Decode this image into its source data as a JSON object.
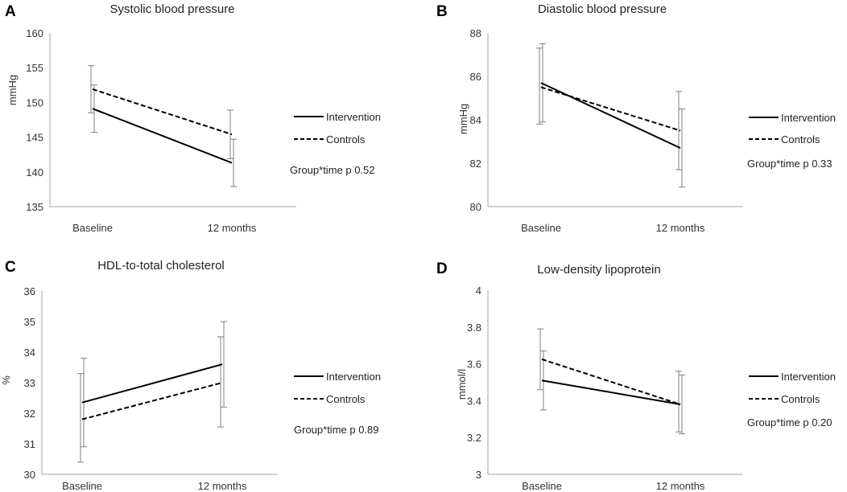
{
  "chart_data": [
    {
      "id": "A",
      "type": "line",
      "panel_label": "A",
      "title": "Systolic blood pressure",
      "ylabel": "mmHg",
      "xlabel": "",
      "categories": [
        "Baseline",
        "12 months"
      ],
      "ylim": [
        135,
        160
      ],
      "yticks": [
        "135",
        "140",
        "145",
        "150",
        "155",
        "160"
      ],
      "grid": false,
      "legend_position": "right",
      "series": [
        {
          "name": "Intervention",
          "style": "solid",
          "values": [
            149.1,
            141.3
          ],
          "err_low": [
            145.7,
            137.9
          ],
          "err_high": [
            152.5,
            144.7
          ]
        },
        {
          "name": "Controls",
          "style": "dashed",
          "values": [
            151.9,
            145.4
          ],
          "err_low": [
            148.5,
            141.9
          ],
          "err_high": [
            155.3,
            148.9
          ]
        }
      ],
      "annotation": "Group*time p 0.52"
    },
    {
      "id": "B",
      "type": "line",
      "panel_label": "B",
      "title": "Diastolic blood pressure",
      "ylabel": "mmHg",
      "xlabel": "",
      "categories": [
        "Baseline",
        "12 months"
      ],
      "ylim": [
        80,
        88
      ],
      "yticks": [
        "80",
        "82",
        "84",
        "86",
        "88"
      ],
      "grid": false,
      "legend_position": "right",
      "series": [
        {
          "name": "Intervention",
          "style": "solid",
          "values": [
            85.7,
            82.7
          ],
          "err_low": [
            83.9,
            80.9
          ],
          "err_high": [
            87.5,
            84.5
          ]
        },
        {
          "name": "Controls",
          "style": "dashed",
          "values": [
            85.5,
            83.5
          ],
          "err_low": [
            83.8,
            81.7
          ],
          "err_high": [
            87.3,
            85.3
          ]
        }
      ],
      "annotation": "Group*time p 0.33"
    },
    {
      "id": "C",
      "type": "line",
      "panel_label": "C",
      "title": "HDL-to-total cholesterol",
      "ylabel": "%",
      "xlabel": "",
      "categories": [
        "Baseline",
        "12 months"
      ],
      "ylim": [
        30,
        36
      ],
      "yticks": [
        "30",
        "31",
        "32",
        "33",
        "34",
        "35",
        "36"
      ],
      "grid": false,
      "legend_position": "right",
      "series": [
        {
          "name": "Intervention",
          "style": "solid",
          "values": [
            32.35,
            33.6
          ],
          "err_low": [
            30.9,
            32.2
          ],
          "err_high": [
            33.8,
            35.0
          ]
        },
        {
          "name": "Controls",
          "style": "dashed",
          "values": [
            31.8,
            33.0
          ],
          "err_low": [
            30.4,
            31.55
          ],
          "err_high": [
            33.3,
            34.5
          ]
        }
      ],
      "annotation": "Group*time p 0.89"
    },
    {
      "id": "D",
      "type": "line",
      "panel_label": "D",
      "title": "Low-density lipoprotein",
      "ylabel": "mmol/l",
      "xlabel": "",
      "categories": [
        "Baseline",
        "12 months"
      ],
      "ylim": [
        3,
        4
      ],
      "yticks": [
        "3",
        "3.2",
        "3.4",
        "3.6",
        "3.8",
        "4"
      ],
      "grid": false,
      "legend_position": "right",
      "series": [
        {
          "name": "Intervention",
          "style": "solid",
          "values": [
            3.51,
            3.38
          ],
          "err_low": [
            3.35,
            3.22
          ],
          "err_high": [
            3.67,
            3.54
          ]
        },
        {
          "name": "Controls",
          "style": "dashed",
          "values": [
            3.625,
            3.38
          ],
          "err_low": [
            3.46,
            3.23
          ],
          "err_high": [
            3.79,
            3.56
          ]
        }
      ],
      "annotation": "Group*time p 0.20"
    }
  ]
}
